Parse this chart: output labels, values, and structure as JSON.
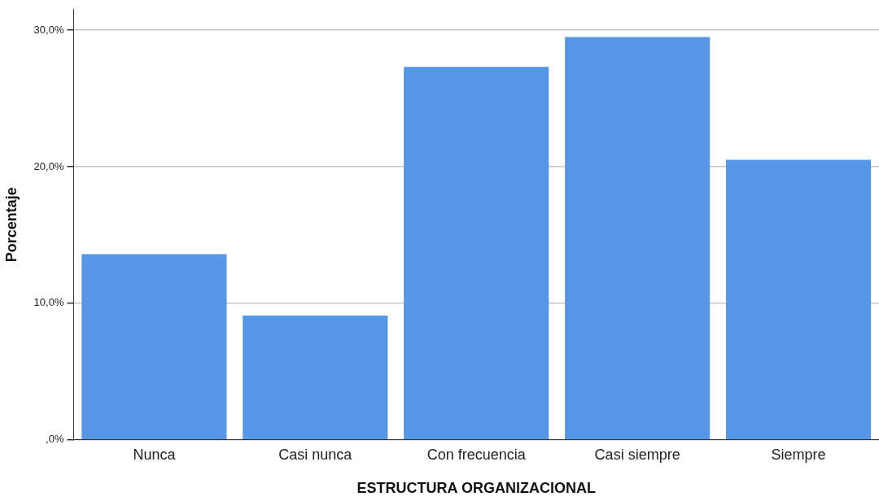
{
  "chart_data": {
    "type": "bar",
    "xlabel": "ESTRUCTURA ORGANIZACIONAL",
    "ylabel": "Porcentaje",
    "categories": [
      "Nunca",
      "Casi nunca",
      "Con frecuencia",
      "Casi siempre",
      "Siempre"
    ],
    "values": [
      13.6,
      9.1,
      27.3,
      29.5,
      20.5
    ],
    "color": "#5596e6",
    "ylim": [
      0,
      31.5
    ],
    "yticks": [
      {
        "value": 0,
        "label": ",0%"
      },
      {
        "value": 10,
        "label": "10,0%"
      },
      {
        "value": 20,
        "label": "20,0%"
      },
      {
        "value": 30,
        "label": "30,0%"
      }
    ],
    "grid": "y",
    "legend": false
  }
}
